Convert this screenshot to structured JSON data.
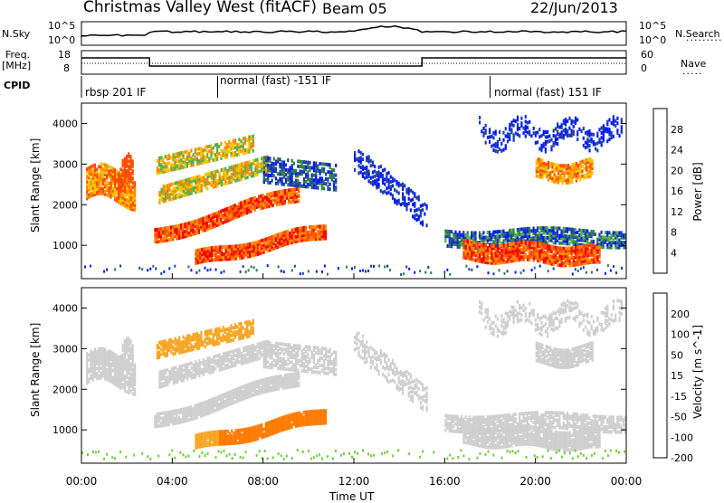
{
  "header": {
    "title": "Christmas Valley West (fitACF)",
    "beam": "Beam 05",
    "date": "22/Jun/2013"
  },
  "top_panels": {
    "nsky_label": "N.Sky",
    "nsky_ticks": [
      "10^5",
      "10^0"
    ],
    "nsky_right_ticks": [
      "10^5",
      "10^0"
    ],
    "nsearch_label": "N.Search",
    "freq_label": "Freq.",
    "freq_unit": "[MHz]",
    "freq_ticks": [
      "18",
      "8"
    ],
    "nave_ticks": [
      "60",
      "0"
    ],
    "nave_label": "Nave",
    "cpid_label": "CPID",
    "cpid_segments": [
      "rbsp 201 IF",
      "normal (fast) -151 IF",
      "normal (fast) 151 IF"
    ]
  },
  "colors": {
    "power_scale": [
      "#0018ff",
      "#1e3ea8",
      "#2f7d4a",
      "#52b04a",
      "#f5c400",
      "#ff8a00",
      "#ff4b00",
      "#f00000"
    ],
    "velocity_scale": [
      "#0018ff",
      "#2a3aa6",
      "#2f7d4a",
      "#6fd13b",
      "#cfcfcf",
      "#f7a623",
      "#ff7a00",
      "#f00000"
    ]
  },
  "chart_data": [
    {
      "type": "heatmap",
      "panel": "power",
      "ylabel": "Slant Range [km]",
      "yticks": [
        "4000",
        "3000",
        "2000",
        "1000"
      ],
      "ylim": [
        180,
        4500
      ],
      "xlim": [
        "00:00",
        "24:00"
      ],
      "colorbar_label": "Power [dB]",
      "colorbar_ticks": [
        "28",
        "24",
        "20",
        "16",
        "12",
        "8",
        "4"
      ]
    },
    {
      "type": "heatmap",
      "panel": "velocity",
      "ylabel": "Slant Range [km]",
      "yticks": [
        "4000",
        "3000",
        "2000",
        "1000"
      ],
      "ylim": [
        180,
        4500
      ],
      "xlim": [
        "00:00",
        "24:00"
      ],
      "xlabel": "Time UT",
      "xticks": [
        "00:00",
        "04:00",
        "08:00",
        "12:00",
        "16:00",
        "20:00",
        "00:00"
      ],
      "colorbar_label": "Velocity [m s^-1]",
      "colorbar_ticks": [
        "200",
        "100",
        "50",
        "15",
        "-15",
        "-50",
        "-100",
        "-200"
      ]
    }
  ]
}
